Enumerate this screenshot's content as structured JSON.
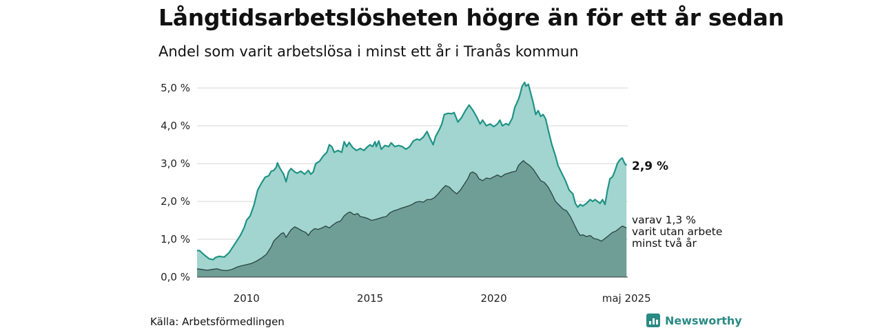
{
  "title": "Långtidsarbetslösheten högre än för ett år sedan",
  "subtitle": "Andel som varit arbetslösa i minst ett år i Tranås kommun",
  "source": "Källa: Arbetsförmedlingen",
  "brand": "Newsworthy",
  "colors": {
    "top_line": "#1f9285",
    "top_fill": "#a2d5cf",
    "bottom_fill": "#6f9e97",
    "bottom_line": "#2d4a46",
    "grid": "#dddddd",
    "brand": "#2a8a84"
  },
  "annotations": {
    "latest_total": "2,9 %",
    "latest_sub_lines": [
      "varav 1,3 %",
      "varit utan arbete",
      "minst två år"
    ]
  },
  "chart_data": {
    "type": "area",
    "x_unit": "year",
    "xlim": [
      2008.0,
      2025.42
    ],
    "ylim": [
      0,
      5.0
    ],
    "y_ticks": [
      0,
      1,
      2,
      3,
      4,
      5
    ],
    "y_tick_labels": [
      "0,0 %",
      "1,0 %",
      "2,0 %",
      "3,0 %",
      "4,0 %",
      "5,0 %"
    ],
    "x_ticks": [
      2010,
      2015,
      2020,
      2025.37
    ],
    "x_tick_labels": [
      "2010",
      "2015",
      "2020",
      "maj 2025"
    ],
    "grid": true,
    "series": [
      {
        "role": "total",
        "points": [
          [
            2008.0,
            0.7
          ],
          [
            2008.1,
            0.7
          ],
          [
            2008.3,
            0.58
          ],
          [
            2008.5,
            0.48
          ],
          [
            2008.65,
            0.46
          ],
          [
            2008.75,
            0.52
          ],
          [
            2008.9,
            0.55
          ],
          [
            2009.1,
            0.53
          ],
          [
            2009.3,
            0.65
          ],
          [
            2009.5,
            0.85
          ],
          [
            2009.75,
            1.1
          ],
          [
            2009.9,
            1.3
          ],
          [
            2010.0,
            1.5
          ],
          [
            2010.15,
            1.62
          ],
          [
            2010.3,
            1.9
          ],
          [
            2010.45,
            2.3
          ],
          [
            2010.6,
            2.48
          ],
          [
            2010.75,
            2.64
          ],
          [
            2010.9,
            2.68
          ],
          [
            2011.0,
            2.8
          ],
          [
            2011.1,
            2.82
          ],
          [
            2011.2,
            2.9
          ],
          [
            2011.25,
            3.02
          ],
          [
            2011.35,
            2.88
          ],
          [
            2011.5,
            2.72
          ],
          [
            2011.6,
            2.52
          ],
          [
            2011.7,
            2.78
          ],
          [
            2011.8,
            2.87
          ],
          [
            2011.95,
            2.78
          ],
          [
            2012.05,
            2.75
          ],
          [
            2012.2,
            2.8
          ],
          [
            2012.35,
            2.72
          ],
          [
            2012.5,
            2.82
          ],
          [
            2012.6,
            2.72
          ],
          [
            2012.7,
            2.78
          ],
          [
            2012.8,
            3.0
          ],
          [
            2012.95,
            3.06
          ],
          [
            2013.1,
            3.2
          ],
          [
            2013.25,
            3.3
          ],
          [
            2013.35,
            3.5
          ],
          [
            2013.45,
            3.45
          ],
          [
            2013.55,
            3.3
          ],
          [
            2013.7,
            3.35
          ],
          [
            2013.85,
            3.3
          ],
          [
            2013.95,
            3.58
          ],
          [
            2014.05,
            3.45
          ],
          [
            2014.15,
            3.56
          ],
          [
            2014.3,
            3.42
          ],
          [
            2014.45,
            3.35
          ],
          [
            2014.6,
            3.4
          ],
          [
            2014.75,
            3.35
          ],
          [
            2014.9,
            3.45
          ],
          [
            2015.0,
            3.5
          ],
          [
            2015.1,
            3.45
          ],
          [
            2015.2,
            3.58
          ],
          [
            2015.25,
            3.45
          ],
          [
            2015.35,
            3.6
          ],
          [
            2015.45,
            3.38
          ],
          [
            2015.6,
            3.48
          ],
          [
            2015.75,
            3.45
          ],
          [
            2015.85,
            3.55
          ],
          [
            2016.0,
            3.45
          ],
          [
            2016.15,
            3.48
          ],
          [
            2016.3,
            3.45
          ],
          [
            2016.45,
            3.38
          ],
          [
            2016.6,
            3.45
          ],
          [
            2016.75,
            3.6
          ],
          [
            2016.9,
            3.65
          ],
          [
            2017.0,
            3.62
          ],
          [
            2017.15,
            3.7
          ],
          [
            2017.3,
            3.85
          ],
          [
            2017.4,
            3.7
          ],
          [
            2017.55,
            3.5
          ],
          [
            2017.65,
            3.72
          ],
          [
            2017.8,
            3.9
          ],
          [
            2017.9,
            4.05
          ],
          [
            2018.0,
            4.3
          ],
          [
            2018.15,
            4.33
          ],
          [
            2018.3,
            4.32
          ],
          [
            2018.4,
            4.35
          ],
          [
            2018.55,
            4.1
          ],
          [
            2018.7,
            4.22
          ],
          [
            2018.85,
            4.4
          ],
          [
            2019.0,
            4.55
          ],
          [
            2019.15,
            4.42
          ],
          [
            2019.3,
            4.25
          ],
          [
            2019.45,
            4.05
          ],
          [
            2019.55,
            4.15
          ],
          [
            2019.7,
            4.0
          ],
          [
            2019.85,
            4.05
          ],
          [
            2020.0,
            3.98
          ],
          [
            2020.15,
            4.05
          ],
          [
            2020.25,
            4.15
          ],
          [
            2020.35,
            4.0
          ],
          [
            2020.5,
            4.06
          ],
          [
            2020.6,
            4.02
          ],
          [
            2020.75,
            4.2
          ],
          [
            2020.85,
            4.48
          ],
          [
            2021.0,
            4.7
          ],
          [
            2021.05,
            4.8
          ],
          [
            2021.15,
            5.05
          ],
          [
            2021.25,
            5.15
          ],
          [
            2021.3,
            5.05
          ],
          [
            2021.4,
            5.1
          ],
          [
            2021.5,
            4.85
          ],
          [
            2021.6,
            4.6
          ],
          [
            2021.7,
            4.3
          ],
          [
            2021.8,
            4.4
          ],
          [
            2021.9,
            4.25
          ],
          [
            2022.0,
            4.3
          ],
          [
            2022.1,
            4.18
          ],
          [
            2022.2,
            3.9
          ],
          [
            2022.35,
            3.5
          ],
          [
            2022.5,
            3.2
          ],
          [
            2022.6,
            2.95
          ],
          [
            2022.75,
            2.75
          ],
          [
            2022.9,
            2.55
          ],
          [
            2023.05,
            2.3
          ],
          [
            2023.2,
            2.2
          ],
          [
            2023.3,
            1.95
          ],
          [
            2023.4,
            1.85
          ],
          [
            2023.5,
            1.92
          ],
          [
            2023.6,
            1.88
          ],
          [
            2023.75,
            1.95
          ],
          [
            2023.9,
            2.05
          ],
          [
            2024.0,
            2.0
          ],
          [
            2024.1,
            2.05
          ],
          [
            2024.2,
            2.0
          ],
          [
            2024.3,
            1.95
          ],
          [
            2024.4,
            2.05
          ],
          [
            2024.5,
            1.92
          ],
          [
            2024.6,
            2.3
          ],
          [
            2024.7,
            2.6
          ],
          [
            2024.8,
            2.65
          ],
          [
            2024.9,
            2.8
          ],
          [
            2025.0,
            3.0
          ],
          [
            2025.1,
            3.1
          ],
          [
            2025.2,
            3.15
          ],
          [
            2025.3,
            3.0
          ],
          [
            2025.37,
            2.95
          ]
        ]
      },
      {
        "role": "two_years_plus",
        "points": [
          [
            2008.0,
            0.22
          ],
          [
            2008.2,
            0.2
          ],
          [
            2008.4,
            0.18
          ],
          [
            2008.6,
            0.2
          ],
          [
            2008.8,
            0.22
          ],
          [
            2009.0,
            0.18
          ],
          [
            2009.2,
            0.17
          ],
          [
            2009.4,
            0.2
          ],
          [
            2009.6,
            0.26
          ],
          [
            2009.8,
            0.3
          ],
          [
            2010.0,
            0.33
          ],
          [
            2010.2,
            0.36
          ],
          [
            2010.4,
            0.42
          ],
          [
            2010.6,
            0.5
          ],
          [
            2010.8,
            0.6
          ],
          [
            2011.0,
            0.8
          ],
          [
            2011.1,
            0.95
          ],
          [
            2011.2,
            1.02
          ],
          [
            2011.3,
            1.08
          ],
          [
            2011.4,
            1.15
          ],
          [
            2011.5,
            1.17
          ],
          [
            2011.6,
            1.05
          ],
          [
            2011.7,
            1.15
          ],
          [
            2011.8,
            1.25
          ],
          [
            2011.95,
            1.33
          ],
          [
            2012.1,
            1.28
          ],
          [
            2012.25,
            1.22
          ],
          [
            2012.4,
            1.18
          ],
          [
            2012.5,
            1.1
          ],
          [
            2012.6,
            1.2
          ],
          [
            2012.75,
            1.28
          ],
          [
            2012.9,
            1.26
          ],
          [
            2013.05,
            1.3
          ],
          [
            2013.2,
            1.35
          ],
          [
            2013.35,
            1.3
          ],
          [
            2013.5,
            1.38
          ],
          [
            2013.65,
            1.45
          ],
          [
            2013.8,
            1.48
          ],
          [
            2013.95,
            1.62
          ],
          [
            2014.1,
            1.7
          ],
          [
            2014.2,
            1.72
          ],
          [
            2014.35,
            1.65
          ],
          [
            2014.5,
            1.68
          ],
          [
            2014.6,
            1.6
          ],
          [
            2014.75,
            1.58
          ],
          [
            2014.9,
            1.55
          ],
          [
            2015.05,
            1.5
          ],
          [
            2015.2,
            1.52
          ],
          [
            2015.35,
            1.55
          ],
          [
            2015.5,
            1.58
          ],
          [
            2015.65,
            1.6
          ],
          [
            2015.8,
            1.7
          ],
          [
            2015.95,
            1.75
          ],
          [
            2016.1,
            1.78
          ],
          [
            2016.25,
            1.82
          ],
          [
            2016.4,
            1.85
          ],
          [
            2016.55,
            1.88
          ],
          [
            2016.7,
            1.92
          ],
          [
            2016.85,
            1.98
          ],
          [
            2017.0,
            2.0
          ],
          [
            2017.15,
            1.98
          ],
          [
            2017.3,
            2.05
          ],
          [
            2017.45,
            2.05
          ],
          [
            2017.6,
            2.1
          ],
          [
            2017.75,
            2.2
          ],
          [
            2017.9,
            2.32
          ],
          [
            2018.05,
            2.42
          ],
          [
            2018.2,
            2.38
          ],
          [
            2018.35,
            2.28
          ],
          [
            2018.5,
            2.2
          ],
          [
            2018.65,
            2.3
          ],
          [
            2018.8,
            2.45
          ],
          [
            2018.95,
            2.6
          ],
          [
            2019.05,
            2.75
          ],
          [
            2019.15,
            2.78
          ],
          [
            2019.3,
            2.72
          ],
          [
            2019.4,
            2.6
          ],
          [
            2019.55,
            2.55
          ],
          [
            2019.7,
            2.62
          ],
          [
            2019.85,
            2.6
          ],
          [
            2020.0,
            2.65
          ],
          [
            2020.15,
            2.7
          ],
          [
            2020.3,
            2.65
          ],
          [
            2020.45,
            2.72
          ],
          [
            2020.6,
            2.75
          ],
          [
            2020.75,
            2.78
          ],
          [
            2020.9,
            2.8
          ],
          [
            2021.0,
            2.95
          ],
          [
            2021.1,
            3.02
          ],
          [
            2021.2,
            3.08
          ],
          [
            2021.3,
            3.02
          ],
          [
            2021.45,
            2.95
          ],
          [
            2021.6,
            2.85
          ],
          [
            2021.75,
            2.7
          ],
          [
            2021.9,
            2.55
          ],
          [
            2022.05,
            2.5
          ],
          [
            2022.2,
            2.38
          ],
          [
            2022.35,
            2.2
          ],
          [
            2022.5,
            2.0
          ],
          [
            2022.65,
            1.9
          ],
          [
            2022.8,
            1.8
          ],
          [
            2022.95,
            1.75
          ],
          [
            2023.1,
            1.6
          ],
          [
            2023.25,
            1.4
          ],
          [
            2023.4,
            1.2
          ],
          [
            2023.5,
            1.1
          ],
          [
            2023.6,
            1.12
          ],
          [
            2023.75,
            1.07
          ],
          [
            2023.9,
            1.1
          ],
          [
            2024.05,
            1.02
          ],
          [
            2024.2,
            1.0
          ],
          [
            2024.35,
            0.95
          ],
          [
            2024.5,
            1.02
          ],
          [
            2024.65,
            1.1
          ],
          [
            2024.8,
            1.18
          ],
          [
            2024.95,
            1.22
          ],
          [
            2025.1,
            1.3
          ],
          [
            2025.2,
            1.35
          ],
          [
            2025.37,
            1.3
          ]
        ]
      }
    ]
  }
}
